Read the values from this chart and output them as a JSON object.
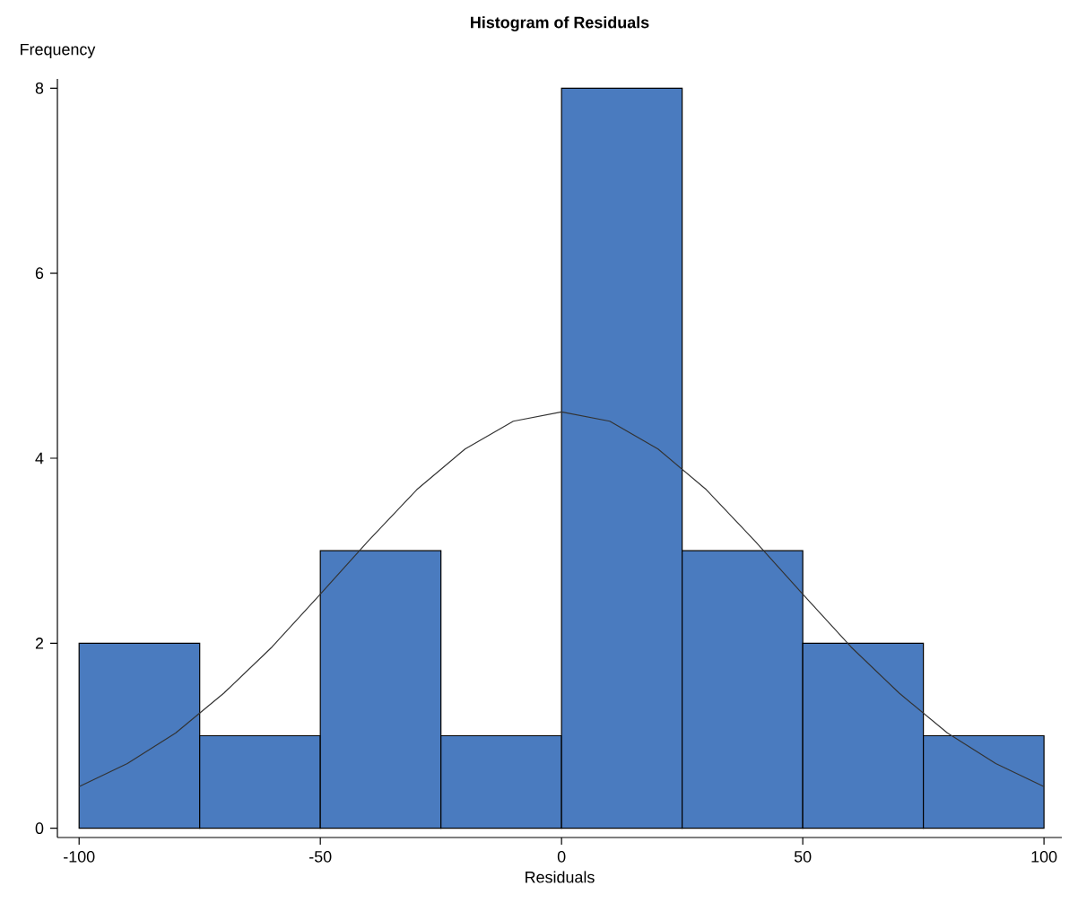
{
  "chart_data": {
    "type": "histogram",
    "title": "Histogram of Residuals",
    "xlabel": "Residuals",
    "ylabel": "Frequency",
    "bins": [
      -100,
      -75,
      -50,
      -25,
      0,
      25,
      50,
      75,
      100
    ],
    "values": [
      2,
      1,
      3,
      1,
      8,
      3,
      2,
      1
    ],
    "color": "#4a7bbf",
    "series": [
      {
        "type": "line",
        "color": "#333333",
        "x": [
          -100,
          -90,
          -80,
          -70,
          -60,
          -50,
          -40,
          -30,
          -20,
          -10,
          0,
          10,
          20,
          30,
          40,
          50,
          60,
          70,
          80,
          90,
          100
        ],
        "values": [
          0.45,
          0.7,
          1.03,
          1.46,
          1.96,
          2.53,
          3.11,
          3.66,
          4.1,
          4.4,
          4.5,
          4.4,
          4.1,
          3.66,
          3.11,
          2.53,
          1.96,
          1.46,
          1.03,
          0.7,
          0.45
        ]
      }
    ],
    "xlim": [
      -104.5,
      103.7
    ],
    "ylim": [
      -0.1,
      8.1
    ],
    "xticks": [
      -100,
      -50,
      0,
      50,
      100
    ],
    "yticks": [
      0,
      2,
      4,
      6,
      8
    ],
    "grid": false
  }
}
